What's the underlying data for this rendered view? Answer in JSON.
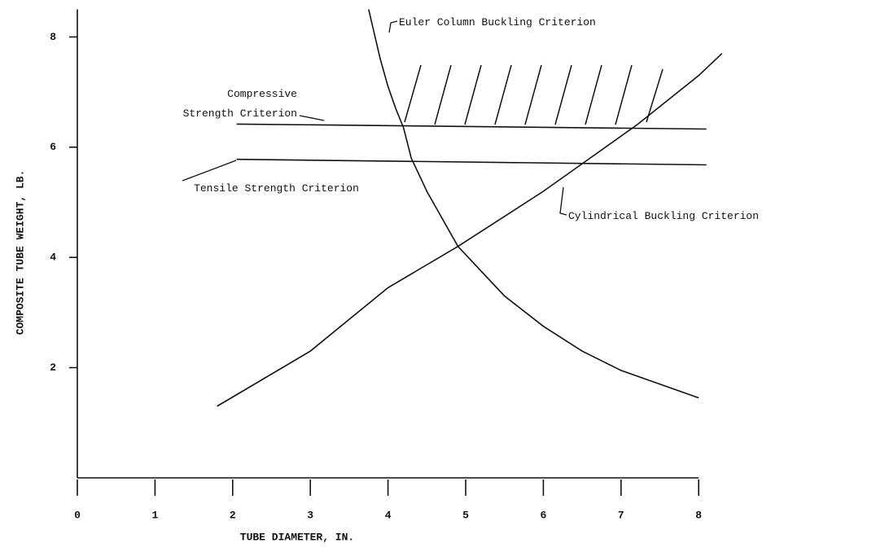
{
  "chart_data": {
    "type": "line",
    "xlabel": "TUBE DIAMETER, IN.",
    "ylabel": "COMPOSITE TUBE WEIGHT, LB.",
    "xlim": [
      0,
      8.3
    ],
    "ylim": [
      0,
      8.5
    ],
    "xticks": [
      0,
      1,
      2,
      3,
      4,
      5,
      6,
      7,
      8
    ],
    "yticks": [
      2,
      4,
      6,
      8
    ],
    "grid": false,
    "series": [
      {
        "name": "Euler Column Buckling Criterion",
        "color": "#111111",
        "x": [
          3.75,
          3.9,
          4.0,
          4.1,
          4.2,
          4.3,
          4.5,
          4.9,
          5.5,
          6.0,
          6.5,
          7.0,
          7.5,
          8.0
        ],
        "values": [
          8.5,
          7.6,
          7.1,
          6.7,
          6.35,
          5.8,
          5.2,
          4.2,
          3.3,
          2.75,
          2.3,
          1.95,
          1.7,
          1.45
        ]
      },
      {
        "name": "Compressive Strength Criterion",
        "color": "#111111",
        "x": [
          2.05,
          8.1
        ],
        "values": [
          6.42,
          6.33
        ]
      },
      {
        "name": "Tensile Strength Criterion",
        "color": "#111111",
        "x": [
          2.05,
          8.1
        ],
        "values": [
          5.78,
          5.68
        ]
      },
      {
        "name": "Cylindrical Buckling Criterion",
        "color": "#111111",
        "x": [
          1.8,
          3.0,
          4.0,
          4.9,
          6.0,
          6.5,
          7.2,
          8.0,
          8.3
        ],
        "values": [
          1.3,
          2.3,
          3.45,
          4.2,
          5.2,
          5.7,
          6.4,
          7.3,
          7.7
        ]
      }
    ]
  }
}
